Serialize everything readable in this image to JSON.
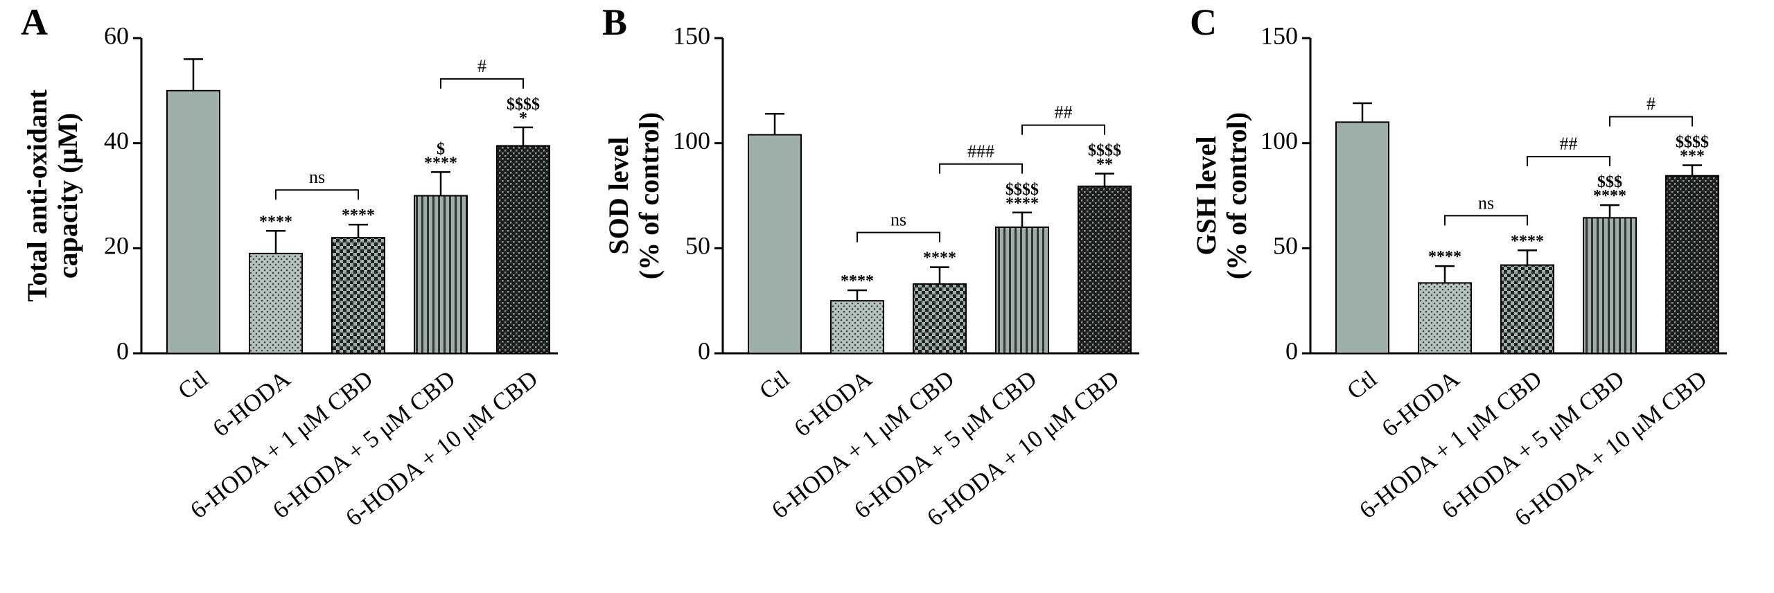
{
  "chart_data": [
    {
      "type": "bar",
      "panel": "A",
      "ylabel": [
        "Total anti-oxidant",
        "capacity (μM)"
      ],
      "categories": [
        "Ctl",
        "6-HODA",
        "6-HODA + 1 μM CBD",
        "6-HODA + 5 μM CBD",
        "6-HODA + 10 μM CBD"
      ],
      "values": [
        50,
        19,
        22,
        30,
        39.5
      ],
      "errors": [
        6,
        4.3,
        2.5,
        4.5,
        3.5
      ],
      "annotations": [
        [],
        [
          "****"
        ],
        [
          "****"
        ],
        [
          "$",
          "****"
        ],
        [
          "$$$$",
          "*"
        ]
      ],
      "brackets": [
        {
          "label": "ns",
          "between": [
            "6-HODA",
            "6-HODA + 1 μM CBD"
          ]
        },
        {
          "label": "#",
          "between": [
            "6-HODA + 5 μM CBD",
            "6-HODA + 10 μM CBD"
          ]
        }
      ],
      "color": "#9fb0ab",
      "ylim": [
        0,
        60
      ],
      "yticks": [
        0,
        20,
        40,
        60
      ]
    },
    {
      "type": "bar",
      "panel": "B",
      "ylabel": [
        "SOD level",
        "(% of control)"
      ],
      "categories": [
        "Ctl",
        "6-HODA",
        "6-HODA + 1 μM CBD",
        "6-HODA + 5 μM CBD",
        "6-HODA + 10 μM CBD"
      ],
      "values": [
        104,
        25,
        33,
        60,
        79.5
      ],
      "errors": [
        10,
        5,
        8,
        7,
        6
      ],
      "annotations": [
        [],
        [
          "****"
        ],
        [
          "****"
        ],
        [
          "$$$$",
          "****"
        ],
        [
          "$$$$",
          "**"
        ]
      ],
      "brackets": [
        {
          "label": "ns",
          "between": [
            "6-HODA",
            "6-HODA + 1 μM CBD"
          ]
        },
        {
          "label": "###",
          "between": [
            "6-HODA + 1 μM CBD",
            "6-HODA + 5 μM CBD"
          ]
        },
        {
          "label": "##",
          "between": [
            "6-HODA + 5 μM CBD",
            "6-HODA + 10 μM CBD"
          ]
        }
      ],
      "color": "#9fb0ab",
      "ylim": [
        0,
        150
      ],
      "yticks": [
        0,
        50,
        100,
        150
      ]
    },
    {
      "type": "bar",
      "panel": "C",
      "ylabel": [
        "GSH level",
        "(% of control)"
      ],
      "categories": [
        "Ctl",
        "6-HODA",
        "6-HODA + 1 μM CBD",
        "6-HODA + 5 μM CBD",
        "6-HODA + 10 μM CBD"
      ],
      "values": [
        110,
        33.5,
        42,
        64.5,
        84.5
      ],
      "errors": [
        9,
        8,
        7,
        6,
        5
      ],
      "annotations": [
        [],
        [
          "****"
        ],
        [
          "****"
        ],
        [
          "$$$",
          "****"
        ],
        [
          "$$$$",
          "***"
        ]
      ],
      "brackets": [
        {
          "label": "ns",
          "between": [
            "6-HODA",
            "6-HODA + 1 μM CBD"
          ]
        },
        {
          "label": "##",
          "between": [
            "6-HODA + 1 μM CBD",
            "6-HODA + 5 μM CBD"
          ]
        },
        {
          "label": "#",
          "between": [
            "6-HODA + 5 μM CBD",
            "6-HODA + 10 μM CBD"
          ]
        }
      ],
      "color": "#9fb0ab",
      "ylim": [
        0,
        150
      ],
      "yticks": [
        0,
        50,
        100,
        150
      ]
    }
  ]
}
